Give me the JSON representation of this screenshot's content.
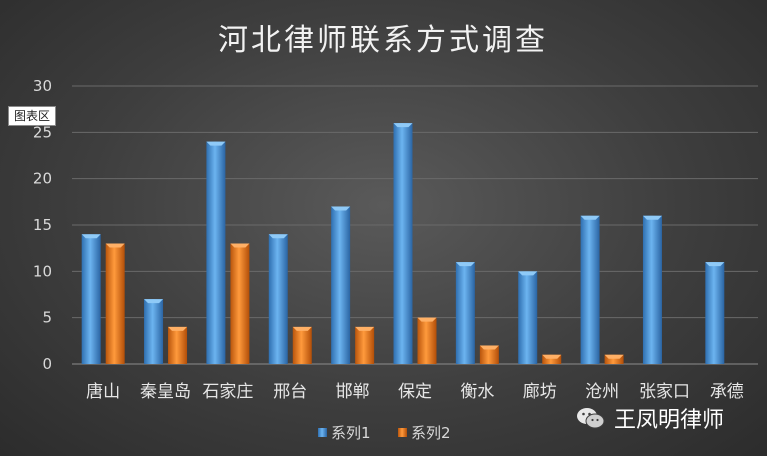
{
  "tooltip": "图表区",
  "watermark": {
    "text": "王凤明律师",
    "icon": "wechat-icon"
  },
  "colors": {
    "series1": "#4f9ee0",
    "series2": "#f07a1a",
    "grid": "#6a6a6a",
    "axis": "#8c8c8c"
  },
  "chart_data": {
    "type": "bar",
    "title": "河北律师联系方式调查",
    "categories": [
      "唐山",
      "秦皇岛",
      "石家庄",
      "邢台",
      "邯郸",
      "保定",
      "衡水",
      "廊坊",
      "沧州",
      "张家口",
      "承德"
    ],
    "series": [
      {
        "name": "系列1",
        "values": [
          14,
          7,
          24,
          14,
          17,
          26,
          11,
          10,
          16,
          16,
          11
        ]
      },
      {
        "name": "系列2",
        "values": [
          13,
          4,
          13,
          4,
          4,
          5,
          2,
          1,
          1,
          null,
          null
        ]
      }
    ],
    "ylim": [
      0,
      30
    ],
    "yticks": [
      0,
      5,
      10,
      15,
      20,
      25,
      30
    ],
    "grid": true,
    "legend": "bottom"
  }
}
